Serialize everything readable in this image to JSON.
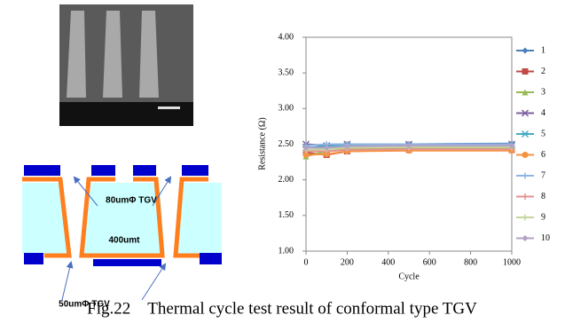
{
  "figure_caption": "Fig.22 Thermal cycle test result of conformal type TGV",
  "diagram": {
    "top_label": "80umΦ  TGV",
    "center_label": "400umt",
    "bottom_label": "50umΦ  TGV"
  },
  "chart_data": {
    "type": "line",
    "x_label": "Cycle",
    "y_label": "Resistance (Ω)",
    "x": [
      0,
      100,
      200,
      500,
      1000
    ],
    "xlim": [
      0,
      1000
    ],
    "xticks": [
      0,
      200,
      400,
      600,
      800,
      1000
    ],
    "ylim": [
      1,
      4
    ],
    "yticks": [
      {
        "value": 1,
        "label": "1.00"
      },
      {
        "value": 1.5,
        "label": "1.50"
      },
      {
        "value": 2,
        "label": "2.00"
      },
      {
        "value": 2.5,
        "label": "2.50"
      },
      {
        "value": 3,
        "label": "3.00"
      },
      {
        "value": 3.5,
        "label": "3.50"
      },
      {
        "value": 4,
        "label": "4.00"
      }
    ],
    "grid": false,
    "legend": "right",
    "series": [
      {
        "name": "1",
        "color": "#4a7ebb",
        "marker": "diamond",
        "values": [
          2.45,
          2.45,
          2.48,
          2.5,
          2.51
        ]
      },
      {
        "name": "2",
        "color": "#be4b48",
        "marker": "square",
        "values": [
          2.38,
          2.35,
          2.4,
          2.42,
          2.42
        ]
      },
      {
        "name": "3",
        "color": "#98b954",
        "marker": "triangle",
        "values": [
          2.33,
          2.4,
          2.43,
          2.45,
          2.45
        ]
      },
      {
        "name": "4",
        "color": "#7d60a0",
        "marker": "x",
        "values": [
          2.5,
          2.48,
          2.5,
          2.5,
          2.5
        ]
      },
      {
        "name": "5",
        "color": "#46aac5",
        "marker": "x",
        "values": [
          2.45,
          2.47,
          2.48,
          2.48,
          2.48
        ]
      },
      {
        "name": "6",
        "color": "#f69240",
        "marker": "circle",
        "values": [
          2.35,
          2.36,
          2.4,
          2.41,
          2.41
        ]
      },
      {
        "name": "7",
        "color": "#8eb4e3",
        "marker": "plus",
        "values": [
          2.48,
          2.5,
          2.5,
          2.5,
          2.5
        ]
      },
      {
        "name": "8",
        "color": "#e6928f",
        "marker": "plus",
        "values": [
          2.4,
          2.4,
          2.42,
          2.43,
          2.43
        ]
      },
      {
        "name": "9",
        "color": "#c3d69b",
        "marker": "plus",
        "values": [
          2.42,
          2.43,
          2.45,
          2.46,
          2.46
        ]
      },
      {
        "name": "10",
        "color": "#b3a2c7",
        "marker": "diamond",
        "values": [
          2.45,
          2.45,
          2.47,
          2.48,
          2.48
        ]
      }
    ]
  }
}
